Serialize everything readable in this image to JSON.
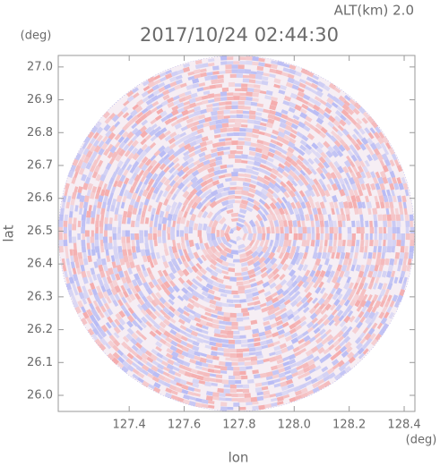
{
  "chart_data": {
    "type": "ppi",
    "title": "2017/10/24 02:44:30",
    "subtitle": "ALT(km) 2.0",
    "x_label": "lon",
    "y_label": "lat",
    "x_unit": "(deg)",
    "y_unit": "(deg)",
    "xlim": [
      127.142,
      128.439
    ],
    "ylim": [
      25.951,
      27.035
    ],
    "xticks": [
      {
        "value": 127.4,
        "label": "127.4"
      },
      {
        "value": 127.6,
        "label": "127.6"
      },
      {
        "value": 127.8,
        "label": "127.8"
      },
      {
        "value": 128.0,
        "label": "128.0"
      },
      {
        "value": 128.2,
        "label": "128.2"
      },
      {
        "value": 128.4,
        "label": "128.4"
      }
    ],
    "yticks": [
      {
        "value": 26.0,
        "label": "26.0"
      },
      {
        "value": 26.1,
        "label": "26.1"
      },
      {
        "value": 26.2,
        "label": "26.2"
      },
      {
        "value": 26.3,
        "label": "26.3"
      },
      {
        "value": 26.4,
        "label": "26.4"
      },
      {
        "value": 26.5,
        "label": "26.5"
      },
      {
        "value": 26.6,
        "label": "26.6"
      },
      {
        "value": 26.7,
        "label": "26.7"
      },
      {
        "value": 26.8,
        "label": "26.8"
      },
      {
        "value": 26.9,
        "label": "26.9"
      },
      {
        "value": 27.0,
        "label": "27.0"
      }
    ],
    "center_lon": 127.79,
    "center_lat": 26.493,
    "radius_lon": 0.648,
    "radius_lat": 0.542,
    "colors": [
      "#f4a8a8",
      "#b4b8f4"
    ]
  }
}
